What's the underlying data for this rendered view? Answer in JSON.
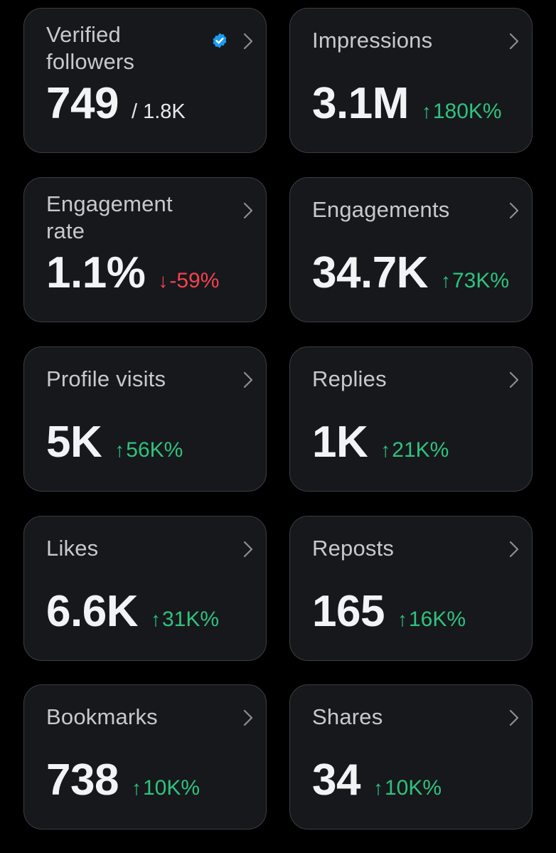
{
  "colors": {
    "background": "#000000",
    "card": "#16181c",
    "card_border": "#3a3d42",
    "positive": "#2fc27e",
    "negative": "#f4424f",
    "verified": "#1d9bf0"
  },
  "cards": [
    {
      "title": "Verified followers",
      "value": "749",
      "sub": "/ 1.8K",
      "icon": "verified-badge-icon"
    },
    {
      "title": "Impressions",
      "value": "3.1M",
      "arrow": "↑",
      "change": "180K%",
      "trend": "up"
    },
    {
      "title": "Engagement rate",
      "value": "1.1%",
      "arrow": "↓",
      "change": "-59%",
      "trend": "down"
    },
    {
      "title": "Engagements",
      "value": "34.7K",
      "arrow": "↑",
      "change": "73K%",
      "trend": "up"
    },
    {
      "title": "Profile visits",
      "value": "5K",
      "arrow": "↑",
      "change": "56K%",
      "trend": "up"
    },
    {
      "title": "Replies",
      "value": "1K",
      "arrow": "↑",
      "change": "21K%",
      "trend": "up"
    },
    {
      "title": "Likes",
      "value": "6.6K",
      "arrow": "↑",
      "change": "31K%",
      "trend": "up"
    },
    {
      "title": "Reposts",
      "value": "165",
      "arrow": "↑",
      "change": "16K%",
      "trend": "up"
    },
    {
      "title": "Bookmarks",
      "value": "738",
      "arrow": "↑",
      "change": "10K%",
      "trend": "up"
    },
    {
      "title": "Shares",
      "value": "34",
      "arrow": "↑",
      "change": "10K%",
      "trend": "up"
    }
  ]
}
